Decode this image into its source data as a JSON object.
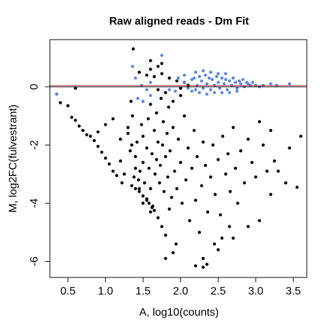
{
  "chart_data": {
    "type": "scatter",
    "title": "Raw aligned reads - Dm Fit",
    "xlabel": "A, log10(counts)",
    "ylabel": "M, log2FC(fulvestrant)",
    "xlim": [
      0.26,
      3.68
    ],
    "ylim": [
      -6.55,
      1.62
    ],
    "x_ticks": [
      0.5,
      1.0,
      1.5,
      2.0,
      2.5,
      3.0,
      3.5
    ],
    "x_tick_labels": [
      "0.5",
      "1.0",
      "1.5",
      "2.0",
      "2.5",
      "3.0",
      "3.5"
    ],
    "y_ticks": [
      -6,
      -4,
      -2,
      0
    ],
    "y_tick_labels": [
      "-6",
      "-4",
      "-2",
      "0"
    ],
    "reference_lines": [
      {
        "y": 0.0,
        "color": "#000000"
      },
      {
        "y": 0.04,
        "color": "#cc3333"
      }
    ],
    "series": [
      {
        "color": "#000000",
        "points": [
          [
            1.3,
            -1.4
          ],
          [
            1.3,
            -1.6
          ],
          [
            1.35,
            -2.0
          ],
          [
            1.4,
            -2.4
          ],
          [
            1.42,
            -1.9
          ],
          [
            1.44,
            -3.2
          ],
          [
            1.46,
            -2.9
          ],
          [
            1.48,
            -1.3
          ],
          [
            1.5,
            -1.7
          ],
          [
            1.5,
            -2.6
          ],
          [
            1.52,
            -3.3
          ],
          [
            1.55,
            -2.1
          ],
          [
            1.55,
            -3.9
          ],
          [
            1.57,
            -1.1
          ],
          [
            1.58,
            -2.8
          ],
          [
            1.6,
            -3.5
          ],
          [
            1.6,
            -0.6
          ],
          [
            1.62,
            -2.3
          ],
          [
            1.63,
            -4.1
          ],
          [
            1.65,
            -1.5
          ],
          [
            1.66,
            -3.0
          ],
          [
            1.68,
            -2.5
          ],
          [
            1.68,
            -0.9
          ],
          [
            1.7,
            -4.5
          ],
          [
            1.7,
            -1.9
          ],
          [
            1.72,
            -3.3
          ],
          [
            1.73,
            -2.7
          ],
          [
            1.74,
            -0.4
          ],
          [
            1.75,
            -4.8
          ],
          [
            1.76,
            -2.0
          ],
          [
            1.77,
            -1.2
          ],
          [
            1.78,
            -3.6
          ],
          [
            1.8,
            -2.4
          ],
          [
            1.8,
            -5.1
          ],
          [
            1.82,
            -1.6
          ],
          [
            1.83,
            -3.1
          ],
          [
            1.84,
            -0.7
          ],
          [
            1.85,
            -4.2
          ],
          [
            1.86,
            -2.2
          ],
          [
            1.88,
            -3.8
          ],
          [
            1.9,
            -1.4
          ],
          [
            1.92,
            -2.9
          ],
          [
            1.94,
            -5.4
          ],
          [
            1.95,
            -3.5
          ],
          [
            1.97,
            -1.8
          ],
          [
            2.0,
            -2.6
          ],
          [
            2.02,
            -4.0
          ],
          [
            2.05,
            -1.0
          ],
          [
            2.07,
            -3.2
          ],
          [
            2.1,
            -2.1
          ],
          [
            2.12,
            -4.6
          ],
          [
            2.15,
            -2.8
          ],
          [
            2.18,
            -1.5
          ],
          [
            2.2,
            -3.9
          ],
          [
            2.22,
            -2.4
          ],
          [
            2.25,
            -5.0
          ],
          [
            2.28,
            -3.4
          ],
          [
            2.3,
            -1.9
          ],
          [
            2.33,
            -2.7
          ],
          [
            2.36,
            -4.3
          ],
          [
            2.4,
            -3.1
          ],
          [
            2.43,
            -2.0
          ],
          [
            2.46,
            -3.7
          ],
          [
            2.5,
            -2.5
          ],
          [
            2.53,
            -4.4
          ],
          [
            2.56,
            -1.7
          ],
          [
            2.6,
            -3.0
          ],
          [
            2.63,
            -2.3
          ],
          [
            2.66,
            -3.6
          ],
          [
            2.7,
            -1.4
          ],
          [
            2.73,
            -2.8
          ],
          [
            2.76,
            -4.0
          ],
          [
            2.8,
            -2.2
          ],
          [
            2.85,
            -3.3
          ],
          [
            2.9,
            -1.8
          ],
          [
            2.95,
            -2.6
          ],
          [
            3.0,
            -3.1
          ],
          [
            3.05,
            -1.2
          ],
          [
            3.1,
            -2.0
          ],
          [
            3.2,
            -1.5
          ],
          [
            3.3,
            -2.9
          ],
          [
            3.4,
            -3.3
          ],
          [
            3.55,
            -3.45
          ],
          [
            3.2,
            -3.7
          ],
          [
            3.05,
            -4.6
          ],
          [
            2.9,
            -4.8
          ],
          [
            2.7,
            -5.2
          ],
          [
            2.5,
            -5.6
          ],
          [
            2.3,
            -5.9
          ],
          [
            2.2,
            -6.15
          ],
          [
            2.3,
            -6.2
          ],
          [
            2.35,
            -6.1
          ],
          [
            1.8,
            -5.9
          ],
          [
            1.9,
            -5.7
          ],
          [
            1.6,
            -4.3
          ],
          [
            1.5,
            -4.0
          ],
          [
            1.45,
            -3.5
          ],
          [
            1.4,
            -2.8
          ],
          [
            1.38,
            -3.1
          ],
          [
            1.33,
            -2.2
          ],
          [
            1.36,
            -1.0
          ],
          [
            1.34,
            -0.5
          ],
          [
            1.37,
            1.3
          ],
          [
            1.45,
            0.5
          ],
          [
            1.55,
            0.4
          ],
          [
            1.65,
            0.35
          ],
          [
            1.75,
            0.45
          ],
          [
            1.85,
            0.3
          ],
          [
            1.95,
            0.2
          ],
          [
            2.05,
            0.15
          ],
          [
            2.1,
            0.05
          ],
          [
            2.0,
            -0.3
          ],
          [
            1.9,
            -0.5
          ],
          [
            1.8,
            -0.2
          ],
          [
            1.7,
            -0.1
          ],
          [
            0.35,
            -0.25
          ],
          [
            0.4,
            -0.55
          ],
          [
            0.5,
            -0.65
          ],
          [
            0.55,
            -1.05
          ],
          [
            0.6,
            -1.15
          ],
          [
            0.6,
            -0.05
          ],
          [
            0.65,
            -1.35
          ],
          [
            0.7,
            -1.5
          ],
          [
            0.75,
            -1.65
          ],
          [
            0.8,
            -1.7
          ],
          [
            0.85,
            -1.85
          ],
          [
            0.9,
            -2.05
          ],
          [
            0.95,
            -2.25
          ],
          [
            1.0,
            -2.45
          ],
          [
            1.05,
            -2.65
          ],
          [
            1.1,
            -2.9
          ],
          [
            1.15,
            -3.05
          ],
          [
            1.2,
            -2.55
          ],
          [
            1.22,
            -3.3
          ],
          [
            1.25,
            -3.0
          ],
          [
            1.0,
            -1.3
          ],
          [
            0.9,
            -1.55
          ],
          [
            1.1,
            -1.1
          ],
          [
            1.2,
            -1.8
          ],
          [
            1.45,
            -3.6
          ],
          [
            1.5,
            -3.75
          ],
          [
            1.55,
            -3.85
          ],
          [
            1.58,
            -4.0
          ],
          [
            1.62,
            -4.15
          ],
          [
            1.65,
            -4.25
          ],
          [
            1.35,
            -3.4
          ],
          [
            1.4,
            -3.5
          ],
          [
            2.55,
            -5.2
          ],
          [
            2.65,
            -4.8
          ],
          [
            2.45,
            -5.4
          ],
          [
            3.6,
            -1.7
          ],
          [
            3.45,
            -2.1
          ],
          [
            3.25,
            -2.55
          ],
          [
            3.15,
            -2.9
          ],
          [
            2.0,
            -0.05
          ],
          [
            1.6,
            0.6
          ],
          [
            1.7,
            0.7
          ],
          [
            1.75,
            0.8
          ],
          [
            1.6,
            0.9
          ]
        ]
      },
      {
        "color": "#5b87e6",
        "points": [
          [
            2.05,
            0.15
          ],
          [
            2.1,
            -0.05
          ],
          [
            2.15,
            0.25
          ],
          [
            2.18,
            0.3
          ],
          [
            2.2,
            -0.1
          ],
          [
            2.22,
            0.05
          ],
          [
            2.25,
            0.35
          ],
          [
            2.28,
            0.2
          ],
          [
            2.3,
            -0.05
          ],
          [
            2.33,
            0.4
          ],
          [
            2.35,
            0.1
          ],
          [
            2.38,
            0.3
          ],
          [
            2.4,
            -0.1
          ],
          [
            2.42,
            0.25
          ],
          [
            2.45,
            0.05
          ],
          [
            2.48,
            0.35
          ],
          [
            2.5,
            0.15
          ],
          [
            2.52,
            -0.05
          ],
          [
            2.55,
            0.3
          ],
          [
            2.58,
            0.1
          ],
          [
            2.6,
            0.25
          ],
          [
            2.62,
            -0.1
          ],
          [
            2.65,
            0.2
          ],
          [
            2.68,
            0.05
          ],
          [
            2.7,
            0.3
          ],
          [
            2.73,
            0.15
          ],
          [
            2.75,
            -0.05
          ],
          [
            2.78,
            0.2
          ],
          [
            2.8,
            0.1
          ],
          [
            2.83,
            0.25
          ],
          [
            2.85,
            0.0
          ],
          [
            2.88,
            0.15
          ],
          [
            2.9,
            0.1
          ],
          [
            2.93,
            0.05
          ],
          [
            2.96,
            0.15
          ],
          [
            3.0,
            0.05
          ],
          [
            3.05,
            0.0
          ],
          [
            2.2,
            0.5
          ],
          [
            2.3,
            0.55
          ],
          [
            2.4,
            0.5
          ],
          [
            2.5,
            0.45
          ],
          [
            2.6,
            0.45
          ],
          [
            2.25,
            -0.2
          ],
          [
            2.35,
            -0.25
          ],
          [
            2.45,
            -0.2
          ],
          [
            2.55,
            -0.2
          ],
          [
            2.65,
            -0.2
          ],
          [
            2.75,
            -0.15
          ],
          [
            2.15,
            -0.15
          ],
          [
            2.05,
            0.4
          ],
          [
            1.97,
            0.3
          ],
          [
            1.93,
            -0.15
          ],
          [
            1.75,
            1.08
          ],
          [
            1.36,
            0.7
          ],
          [
            1.4,
            0.3
          ],
          [
            1.48,
            0.05
          ],
          [
            1.55,
            -0.1
          ],
          [
            1.6,
            0.15
          ],
          [
            1.5,
            -0.5
          ],
          [
            1.43,
            -0.4
          ],
          [
            1.6,
            -0.3
          ],
          [
            1.85,
            -0.1
          ],
          [
            3.45,
            0.1
          ],
          [
            0.35,
            -0.25
          ],
          [
            3.1,
            0.05
          ],
          [
            3.2,
            0.1
          ],
          [
            3.28,
            0.05
          ]
        ]
      }
    ]
  }
}
